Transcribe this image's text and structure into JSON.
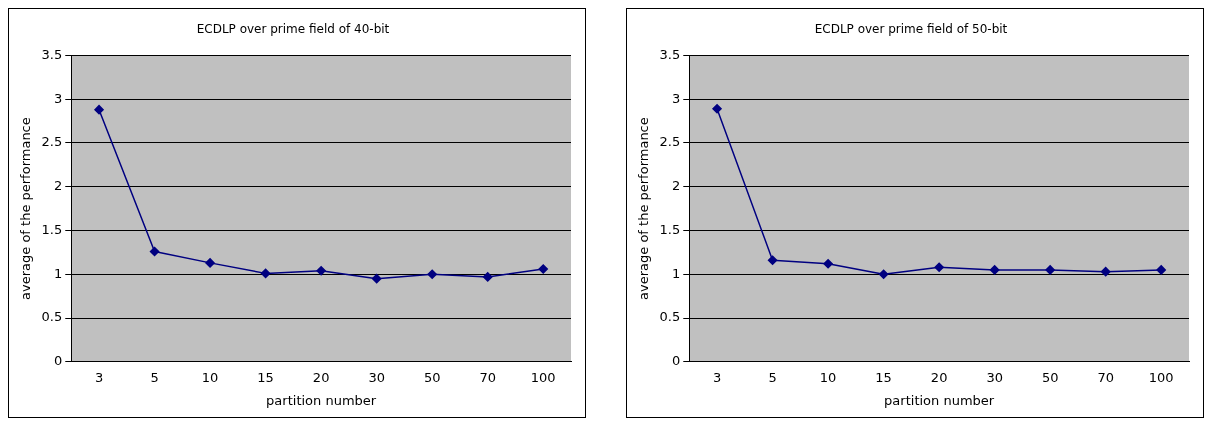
{
  "chart_data": [
    {
      "type": "line",
      "title": "ECDLP over prime field of 40-bit",
      "xlabel": "partition number",
      "ylabel": "average of the performance",
      "categories": [
        "3",
        "5",
        "10",
        "15",
        "20",
        "30",
        "50",
        "70",
        "100"
      ],
      "series": [
        {
          "color": "#000080",
          "values": [
            2.88,
            1.26,
            1.13,
            1.01,
            1.04,
            0.95,
            1.0,
            0.97,
            1.06
          ]
        }
      ],
      "ylim": [
        0,
        3.5
      ],
      "yticks": [
        0,
        0.5,
        1,
        1.5,
        2,
        2.5,
        3,
        3.5
      ],
      "grid": "y",
      "legend": false,
      "marker": "diamond",
      "line_style": "solid"
    },
    {
      "type": "line",
      "title": "ECDLP over prime field of 50-bit",
      "xlabel": "partition number",
      "ylabel": "average of the performance",
      "categories": [
        "3",
        "5",
        "10",
        "15",
        "20",
        "30",
        "50",
        "70",
        "100"
      ],
      "series": [
        {
          "color": "#000080",
          "values": [
            2.89,
            1.16,
            1.12,
            1.0,
            1.08,
            1.05,
            1.05,
            1.03,
            1.05
          ]
        }
      ],
      "ylim": [
        0,
        3.5
      ],
      "yticks": [
        0,
        0.5,
        1,
        1.5,
        2,
        2.5,
        3,
        3.5
      ],
      "grid": "y",
      "legend": false,
      "marker": "diamond",
      "line_style": "solid"
    }
  ]
}
